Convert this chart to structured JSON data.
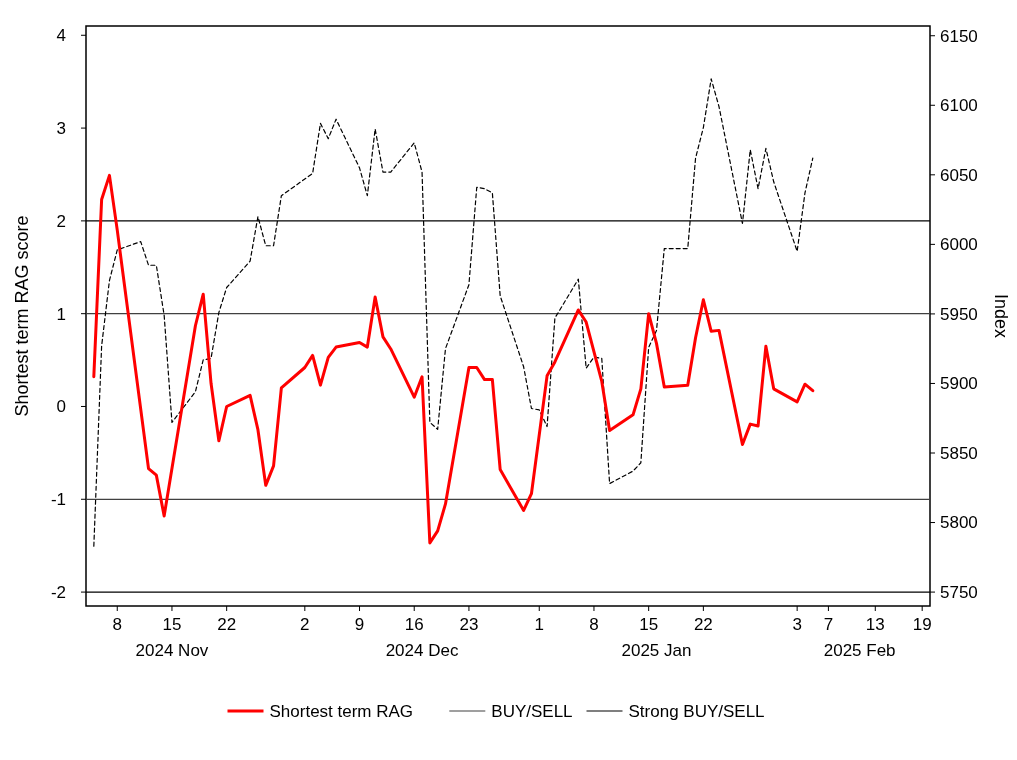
{
  "chart_data": {
    "type": "line",
    "ylabel": "Shortest term RAG score",
    "y2label": "Index",
    "xlim": [
      "2024-11-04",
      "2025-02-20"
    ],
    "ylim": [
      -2.15,
      4.1
    ],
    "y2lim": [
      5740,
      6157
    ],
    "xticks": [
      {
        "value": "2024-11-08",
        "label": "8"
      },
      {
        "value": "2024-11-15",
        "label": "15"
      },
      {
        "value": "2024-11-22",
        "label": "22"
      },
      {
        "value": "2024-12-02",
        "label": "2"
      },
      {
        "value": "2024-12-09",
        "label": "9"
      },
      {
        "value": "2024-12-16",
        "label": "16"
      },
      {
        "value": "2024-12-23",
        "label": "23"
      },
      {
        "value": "2025-01-01",
        "label": "1"
      },
      {
        "value": "2025-01-08",
        "label": "8"
      },
      {
        "value": "2025-01-15",
        "label": "15"
      },
      {
        "value": "2025-01-22",
        "label": "22"
      },
      {
        "value": "2025-02-03",
        "label": "3"
      },
      {
        "value": "2025-02-07",
        "label": "7"
      },
      {
        "value": "2025-02-13",
        "label": "13"
      },
      {
        "value": "2025-02-19",
        "label": "19"
      }
    ],
    "x2lim": [
      "2024-11-04",
      "2025-02-20"
    ],
    "x2ticks": [
      {
        "value": "2024-11-15",
        "label": "2024 Nov"
      },
      {
        "value": "2024-12-17",
        "label": "2024 Dec"
      },
      {
        "value": "2025-01-16",
        "label": "2025 Jan"
      },
      {
        "value": "2025-02-11",
        "label": "2025 Feb"
      }
    ],
    "yticks": [
      -2,
      -1,
      0,
      1,
      2,
      3,
      4
    ],
    "y2ticks": [
      5750,
      5800,
      5850,
      5900,
      5950,
      6000,
      6050,
      6100,
      6150
    ],
    "legend": "bottom",
    "x": [
      "2024-11-05",
      "2024-11-06",
      "2024-11-07",
      "2024-11-08",
      "2024-11-11",
      "2024-11-12",
      "2024-11-13",
      "2024-11-14",
      "2024-11-15",
      "2024-11-18",
      "2024-11-19",
      "2024-11-20",
      "2024-11-21",
      "2024-11-22",
      "2024-11-25",
      "2024-11-26",
      "2024-11-27",
      "2024-11-28",
      "2024-11-29",
      "2024-12-02",
      "2024-12-03",
      "2024-12-04",
      "2024-12-05",
      "2024-12-06",
      "2024-12-09",
      "2024-12-10",
      "2024-12-11",
      "2024-12-12",
      "2024-12-13",
      "2024-12-16",
      "2024-12-17",
      "2024-12-18",
      "2024-12-19",
      "2024-12-20",
      "2024-12-23",
      "2024-12-24",
      "2024-12-25",
      "2024-12-26",
      "2024-12-27",
      "2024-12-30",
      "2024-12-31",
      "2025-01-01",
      "2025-01-02",
      "2025-01-03",
      "2025-01-06",
      "2025-01-07",
      "2025-01-08",
      "2025-01-09",
      "2025-01-10",
      "2025-01-13",
      "2025-01-14",
      "2025-01-15",
      "2025-01-16",
      "2025-01-17",
      "2025-01-20",
      "2025-01-21",
      "2025-01-22",
      "2025-01-23",
      "2025-01-24",
      "2025-01-27",
      "2025-01-28",
      "2025-01-29",
      "2025-01-30",
      "2025-01-31",
      "2025-02-03",
      "2025-02-04",
      "2025-02-05"
    ],
    "series": [
      {
        "name": "Shortest term RAG",
        "color": "#ff0000",
        "line_style": "solid",
        "x": [
          "2024-11-05",
          "2024-11-06",
          "2024-11-07",
          "2024-11-08",
          "2024-11-12",
          "2024-11-13",
          "2024-11-14",
          "2024-11-18",
          "2024-11-19",
          "2024-11-20",
          "2024-11-21",
          "2024-11-22",
          "2024-11-25",
          "2024-11-26",
          "2024-11-27",
          "2024-11-28",
          "2024-11-29",
          "2024-12-02",
          "2024-12-03",
          "2024-12-04",
          "2024-12-05",
          "2024-12-06",
          "2024-12-09",
          "2024-12-10",
          "2024-12-11",
          "2024-12-12",
          "2024-12-13",
          "2024-12-16",
          "2024-12-17",
          "2024-12-18",
          "2024-12-19",
          "2024-12-20",
          "2024-12-23",
          "2024-12-24",
          "2024-12-25",
          "2024-12-26",
          "2024-12-27",
          "2024-12-30",
          "2024-12-31",
          "2025-01-02",
          "2025-01-03",
          "2025-01-06",
          "2025-01-07",
          "2025-01-09",
          "2025-01-10",
          "2025-01-13",
          "2025-01-14",
          "2025-01-15",
          "2025-01-16",
          "2025-01-17",
          "2025-01-20",
          "2025-01-21",
          "2025-01-22",
          "2025-01-23",
          "2025-01-24",
          "2025-01-27",
          "2025-01-28",
          "2025-01-29",
          "2025-01-30",
          "2025-01-31",
          "2025-02-03",
          "2025-02-04",
          "2025-02-05"
        ],
        "values": [
          0.32,
          2.23,
          2.49,
          1.9,
          -0.67,
          -0.74,
          -1.18,
          0.87,
          1.21,
          0.25,
          -0.37,
          0.0,
          0.12,
          -0.25,
          -0.85,
          -0.64,
          0.2,
          0.42,
          0.55,
          0.23,
          0.53,
          0.64,
          0.69,
          0.64,
          1.18,
          0.75,
          0.62,
          0.1,
          0.32,
          -1.47,
          -1.34,
          -1.05,
          0.42,
          0.42,
          0.29,
          0.29,
          -0.68,
          -1.12,
          -0.94,
          0.33,
          0.48,
          1.04,
          0.91,
          0.27,
          -0.26,
          -0.09,
          0.19,
          1.0,
          0.68,
          0.21,
          0.23,
          0.74,
          1.15,
          0.81,
          0.82,
          -0.41,
          -0.19,
          -0.21,
          0.65,
          0.19,
          0.05,
          0.24,
          0.17
        ]
      },
      {
        "color": "#000000",
        "line_style": "dashed",
        "axis": "y2",
        "values": [
          5783,
          5927,
          5974,
          5996,
          6002,
          5985,
          5985,
          5949,
          5872,
          5894,
          5917,
          5918,
          5951,
          5969,
          5988,
          6020,
          5999,
          5999,
          6035,
          6047,
          6051,
          6087,
          6076,
          6090,
          6055,
          6035,
          6083,
          6052,
          6052,
          6073,
          6052,
          5872,
          5867,
          5925,
          5971,
          6041,
          6040,
          6037,
          5963,
          5912,
          5882,
          5881,
          5869,
          5947,
          5975,
          5911,
          5919,
          5918,
          5828,
          5837,
          5843,
          5926,
          5938,
          5997,
          5997,
          6062,
          6084,
          6119,
          6099,
          6015,
          6068,
          6040,
          6069,
          6045,
          5995,
          6037,
          6062
        ]
      }
    ],
    "ref_lines": [
      {
        "axis": "y",
        "value": 1,
        "label": "BUY/SELL",
        "color": "#404040"
      },
      {
        "axis": "y",
        "value": -1,
        "color": "#404040"
      },
      {
        "axis": "y",
        "value": 2,
        "label": "Strong BUY/SELL",
        "color": "#000000"
      },
      {
        "axis": "y",
        "value": -2,
        "color": "#000000"
      }
    ]
  }
}
